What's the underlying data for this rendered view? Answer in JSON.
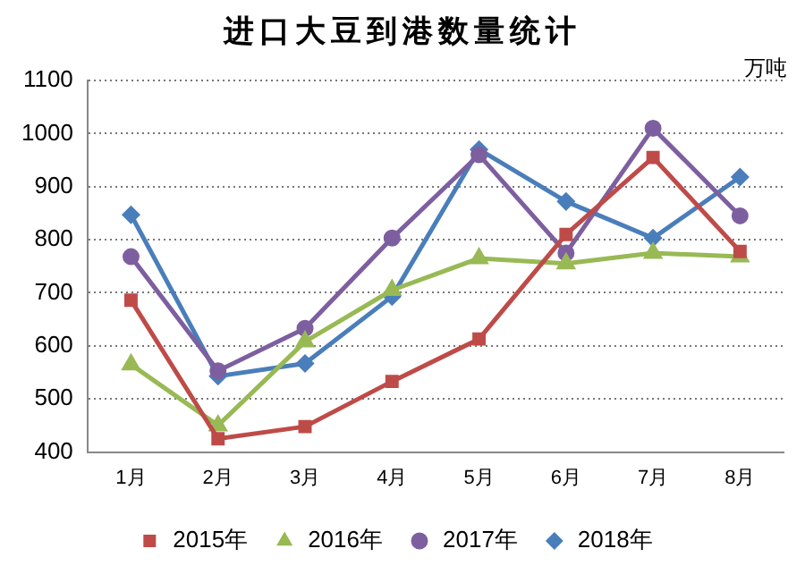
{
  "chart_data": {
    "type": "line",
    "title": "进口大豆到港数量统计",
    "ylabel": "万吨",
    "categories": [
      "1月",
      "2月",
      "3月",
      "4月",
      "5月",
      "6月",
      "7月",
      "8月"
    ],
    "series": [
      {
        "name": "2015年",
        "color": "#be4b48",
        "marker": "square",
        "values": [
          686,
          425,
          448,
          533,
          613,
          810,
          955,
          778
        ]
      },
      {
        "name": "2016年",
        "color": "#98b954",
        "marker": "triangle",
        "values": [
          565,
          450,
          608,
          705,
          765,
          755,
          775,
          768
        ]
      },
      {
        "name": "2017年",
        "color": "#7d5fa0",
        "marker": "circle",
        "values": [
          768,
          553,
          633,
          803,
          960,
          775,
          1010,
          845
        ]
      },
      {
        "name": "2018年",
        "color": "#4a7ebb",
        "marker": "diamond",
        "values": [
          847,
          543,
          567,
          693,
          970,
          872,
          803,
          918
        ]
      }
    ],
    "ylim": [
      400,
      1100
    ],
    "yticks": [
      400,
      500,
      600,
      700,
      800,
      900,
      1000,
      1100
    ],
    "grid": "y",
    "legend": "bottom",
    "line_style": "solid"
  }
}
